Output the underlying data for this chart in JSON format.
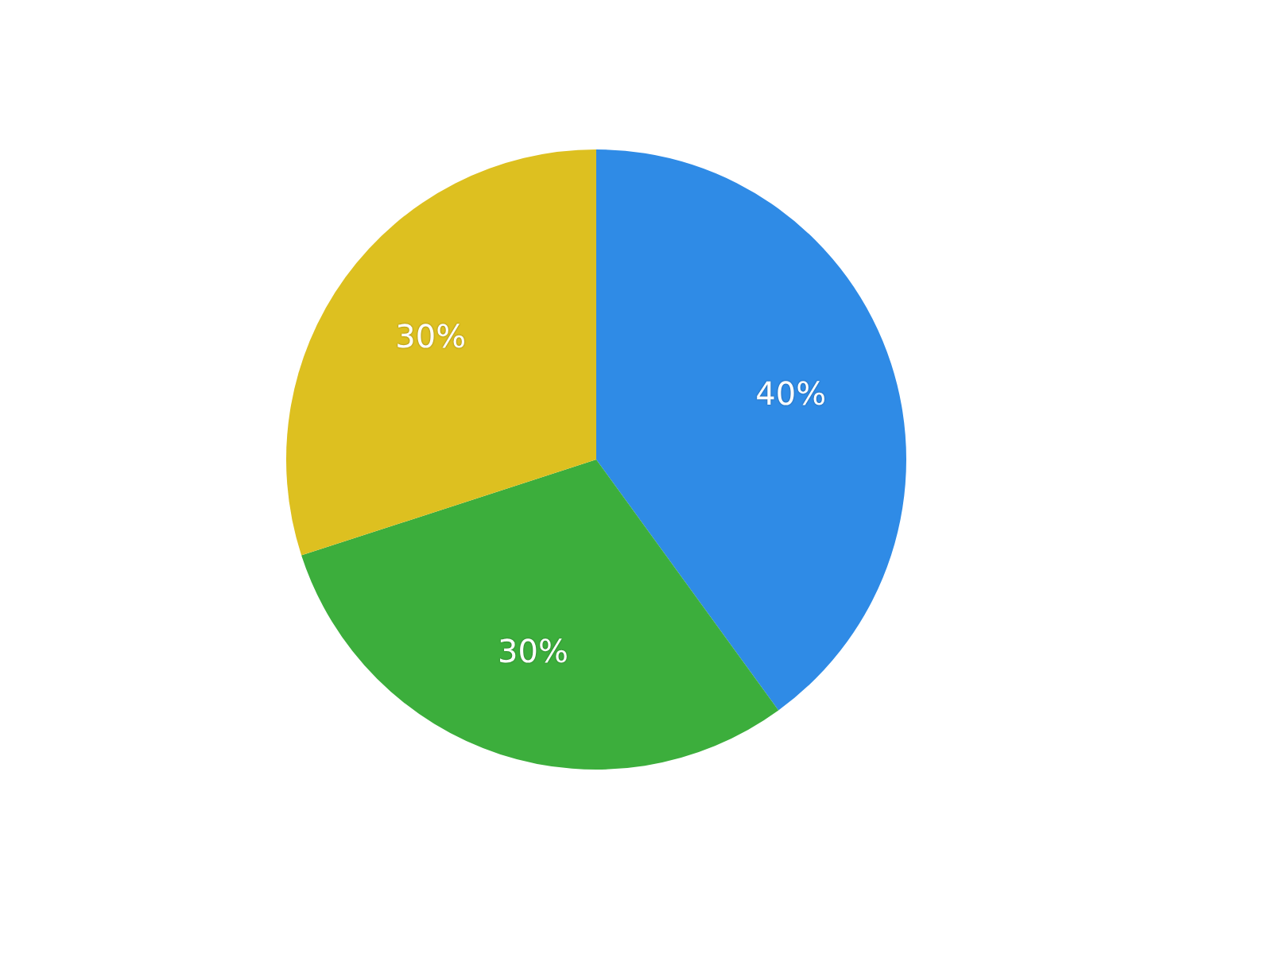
{
  "chart_data": {
    "type": "pie",
    "categories": [
      null,
      null,
      null
    ],
    "values": [
      40,
      30,
      30
    ],
    "colors": [
      "#2f8be6",
      "#3cae3c",
      "#ddc020"
    ],
    "value_labels": [
      "40%",
      "30%",
      "30%"
    ],
    "legend": false
  }
}
